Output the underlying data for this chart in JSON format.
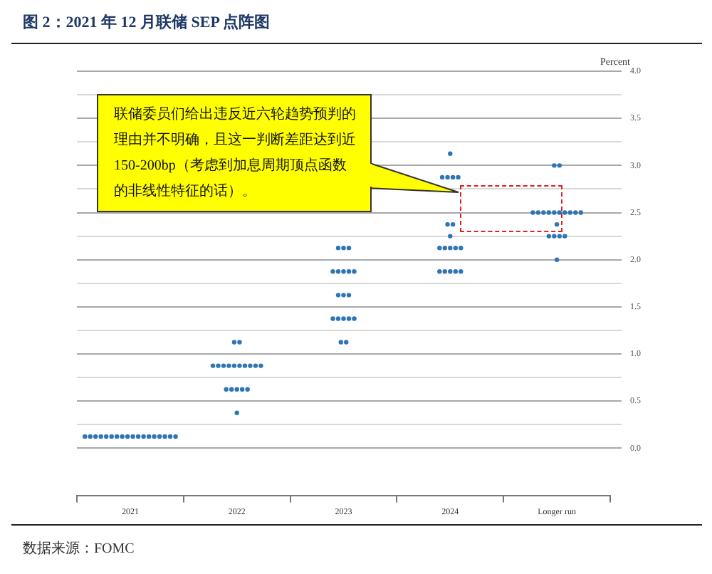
{
  "chart_data": {
    "type": "scatter",
    "title": "图 2：2021 年 12 月联储 SEP 点阵图",
    "ylabel": "Percent",
    "categories": [
      "2021",
      "2022",
      "2023",
      "2024",
      "Longer run"
    ],
    "series": [
      {
        "color": "#2e75b6",
        "values": [
          0.125,
          0.375,
          1.125,
          1.875,
          2.0
        ]
      },
      {
        "color": "#2e75b6",
        "values": [
          0.125,
          0.625,
          1.125,
          1.875,
          2.25
        ]
      },
      {
        "color": "#2e75b6",
        "values": [
          0.125,
          0.625,
          1.375,
          1.875,
          2.25
        ]
      },
      {
        "color": "#2e75b6",
        "values": [
          0.125,
          0.625,
          1.375,
          1.875,
          2.25
        ]
      },
      {
        "color": "#2e75b6",
        "values": [
          0.125,
          0.625,
          1.375,
          1.875,
          2.25
        ]
      },
      {
        "color": "#2e75b6",
        "values": [
          0.125,
          0.625,
          1.375,
          2.125,
          2.375
        ]
      },
      {
        "color": "#2e75b6",
        "values": [
          0.125,
          0.875,
          1.375,
          2.125,
          2.5
        ]
      },
      {
        "color": "#2e75b6",
        "values": [
          0.125,
          0.875,
          1.625,
          2.125,
          2.5
        ]
      },
      {
        "color": "#2e75b6",
        "values": [
          0.125,
          0.875,
          1.625,
          2.125,
          2.5
        ]
      },
      {
        "color": "#2e75b6",
        "values": [
          0.125,
          0.875,
          1.625,
          2.125,
          2.5
        ]
      },
      {
        "color": "#2e75b6",
        "values": [
          0.125,
          0.875,
          1.875,
          2.25,
          2.5
        ]
      },
      {
        "color": "#2e75b6",
        "values": [
          0.125,
          0.875,
          1.875,
          2.375,
          2.5
        ]
      },
      {
        "color": "#2e75b6",
        "values": [
          0.125,
          0.875,
          1.875,
          2.375,
          2.5
        ]
      },
      {
        "color": "#2e75b6",
        "values": [
          0.125,
          0.875,
          1.875,
          2.875,
          2.5
        ]
      },
      {
        "color": "#2e75b6",
        "values": [
          0.125,
          0.875,
          1.875,
          2.875,
          2.5
        ]
      },
      {
        "color": "#2e75b6",
        "values": [
          0.125,
          0.875,
          2.125,
          2.875,
          2.5
        ]
      },
      {
        "color": "#2e75b6",
        "values": [
          0.125,
          1.125,
          2.125,
          2.875,
          3.0
        ]
      },
      {
        "color": "#2e75b6",
        "values": [
          0.125,
          1.125,
          2.125,
          3.125,
          3.0
        ]
      }
    ],
    "ylim": [
      -0.5,
      4.0
    ],
    "yticks": [
      {
        "value": 0,
        "label": "0.0"
      },
      {
        "value": 0.25,
        "label": null
      },
      {
        "value": 0.5,
        "label": "0.5"
      },
      {
        "value": 0.75,
        "label": null
      },
      {
        "value": 1,
        "label": "1.0"
      },
      {
        "value": 1.25,
        "label": null
      },
      {
        "value": 1.5,
        "label": "1.5"
      },
      {
        "value": 1.75,
        "label": null
      },
      {
        "value": 2,
        "label": "2.0"
      },
      {
        "value": 2.25,
        "label": null
      },
      {
        "value": 2.5,
        "label": "2.5"
      },
      {
        "value": 2.75,
        "label": null
      },
      {
        "value": 3,
        "label": "3.0"
      },
      {
        "value": 3.25,
        "label": null
      },
      {
        "value": 3.5,
        "label": "3.5"
      },
      {
        "value": 3.75,
        "label": null
      },
      {
        "value": 4,
        "label": "4.0"
      }
    ],
    "grid": "y",
    "marker": "circle",
    "annotations": [
      "联储委员们给出违反近六轮趋势预判的理由并不明确，且这一判断差距达到近 150-200bp（考虑到加息周期顶点函数的非线性特征的话）。",
      "数据来源：FOMC"
    ]
  }
}
